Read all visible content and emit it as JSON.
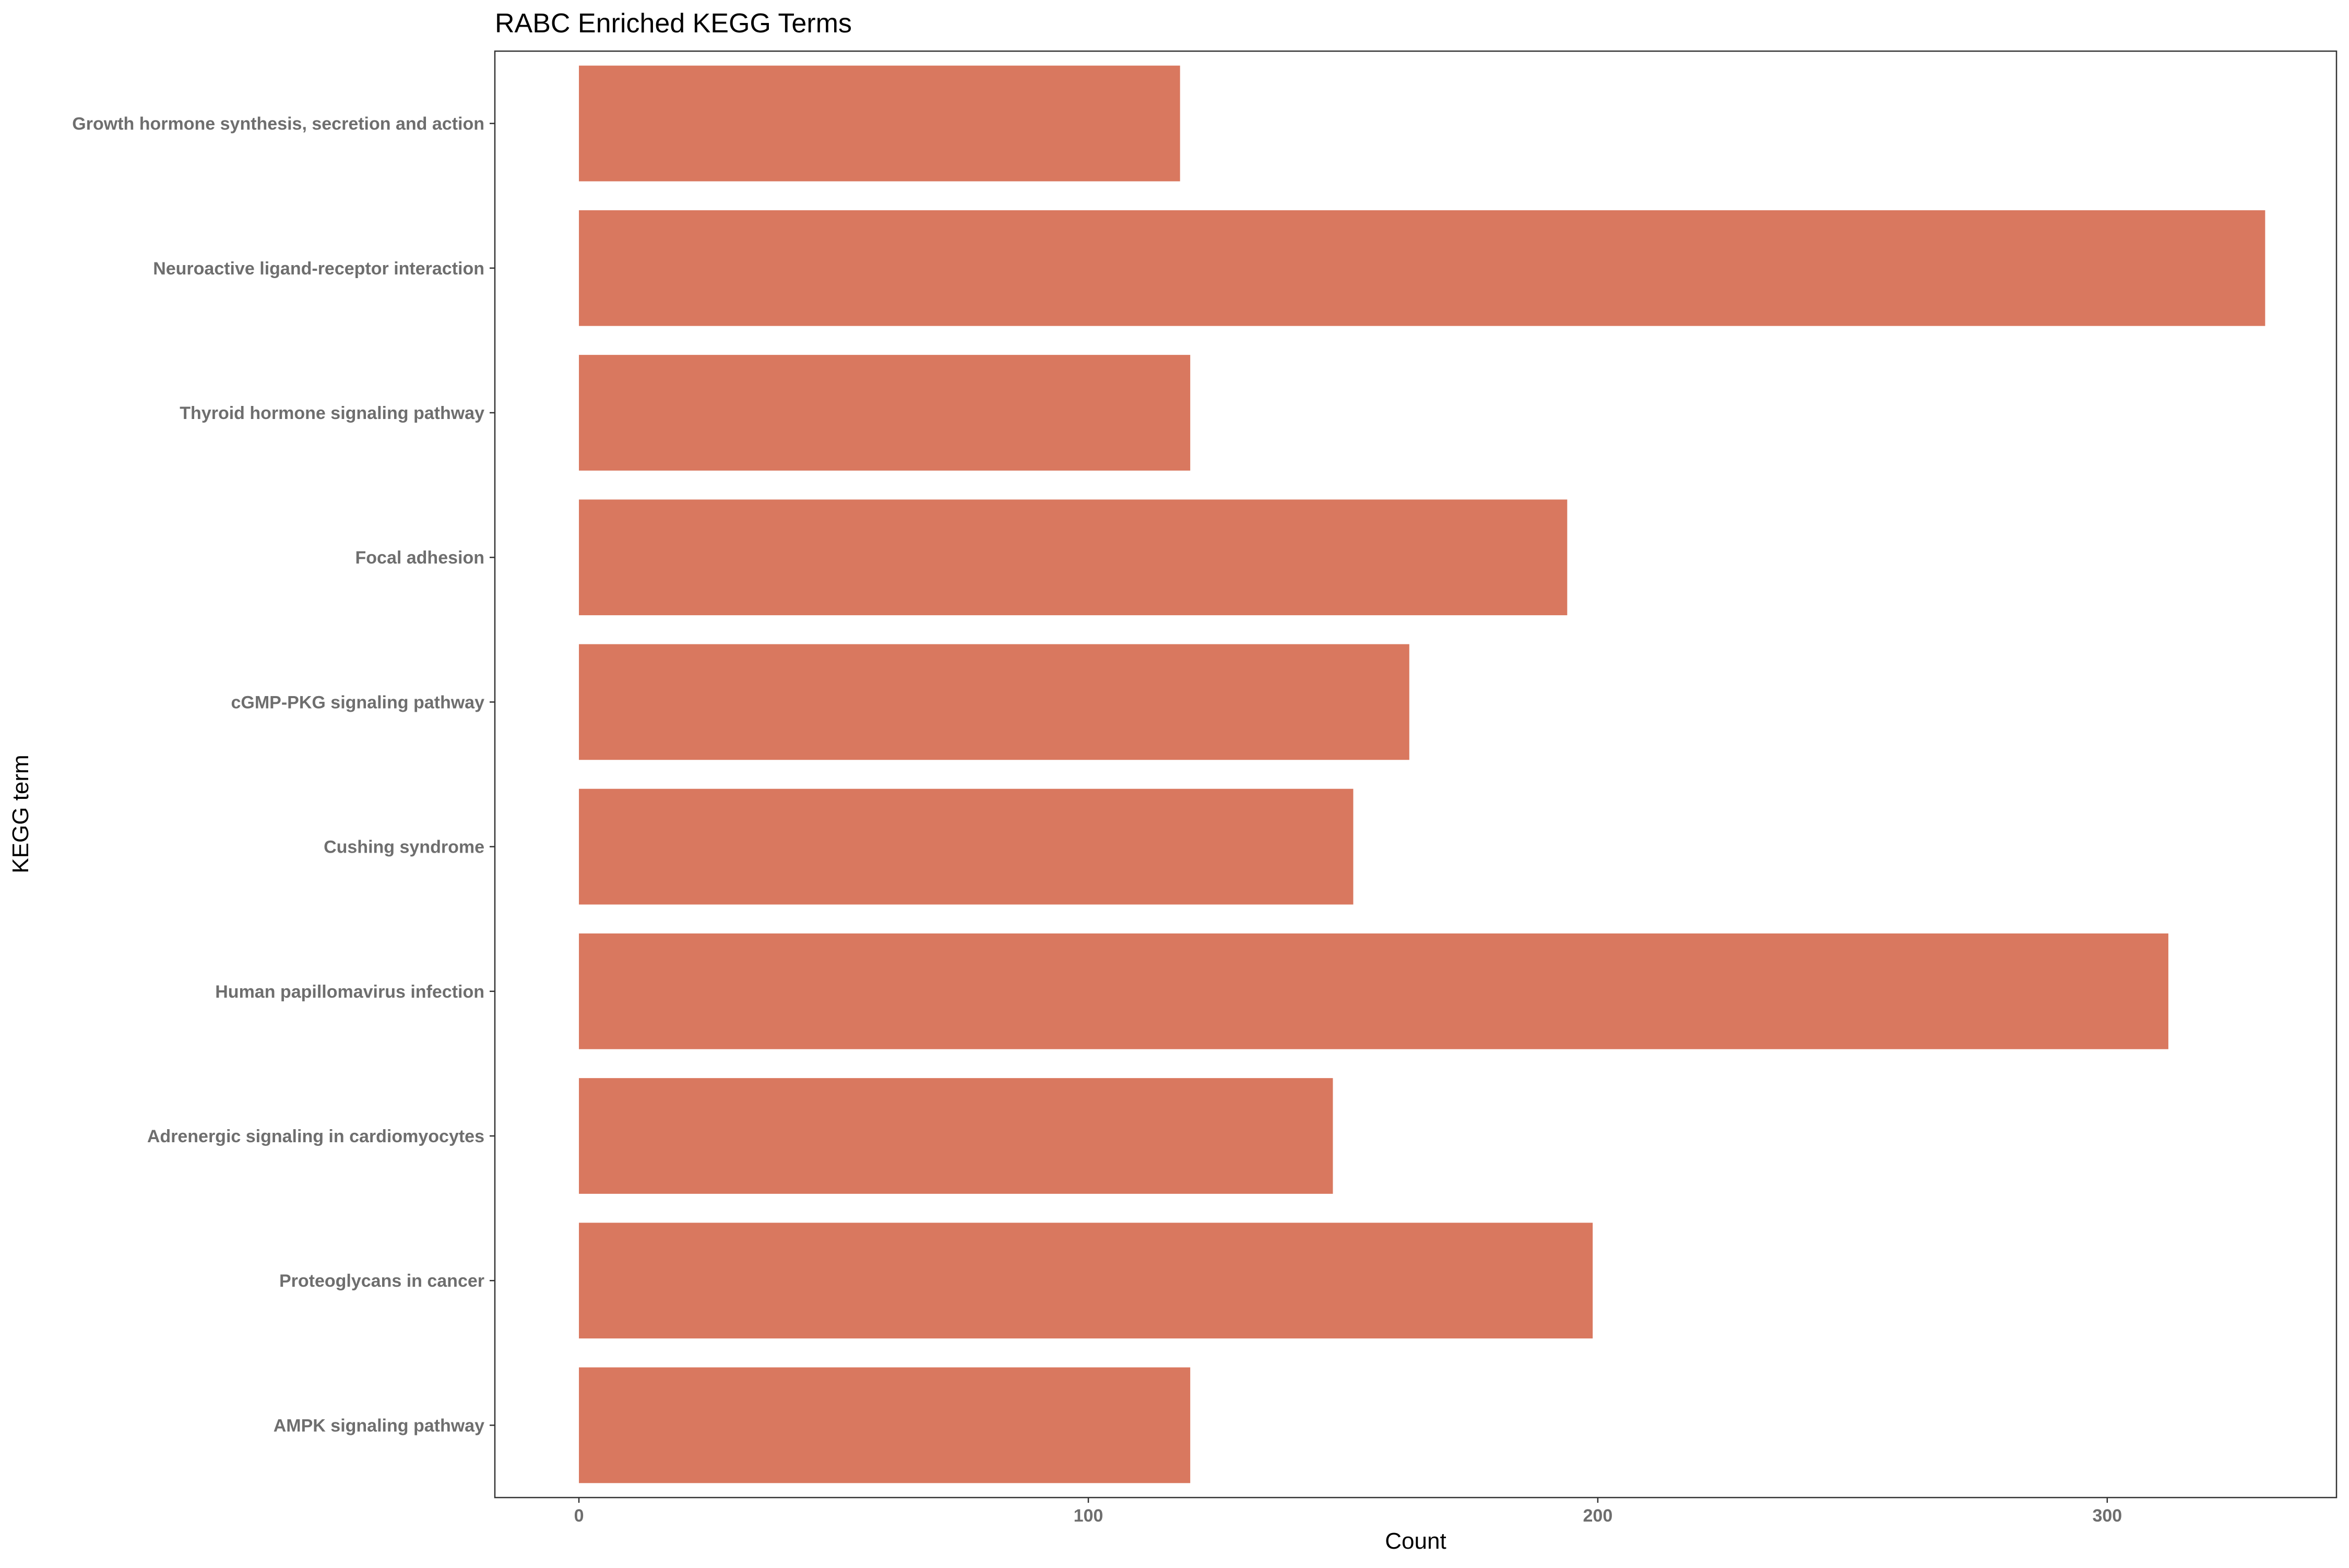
{
  "chart_data": {
    "type": "bar",
    "orientation": "horizontal",
    "title": "RABC Enriched KEGG Terms",
    "xlabel": "Count",
    "ylabel": "KEGG term",
    "xlim": [
      -16.5,
      345
    ],
    "xticks": [
      0,
      100,
      200,
      300
    ],
    "categories": [
      "Growth hormone synthesis, secretion and action",
      "Neuroactive ligand-receptor interaction",
      "Thyroid hormone signaling pathway",
      "Focal adhesion",
      "cGMP-PKG signaling pathway",
      "Cushing syndrome",
      "Human papillomavirus infection",
      "Adrenergic signaling in cardiomyocytes",
      "Proteoglycans in cancer",
      "AMPK signaling pathway"
    ],
    "values": [
      118,
      331,
      120,
      194,
      163,
      152,
      312,
      148,
      199,
      120
    ],
    "bar_color": "#d9785f",
    "grid": false,
    "legend": "none"
  }
}
